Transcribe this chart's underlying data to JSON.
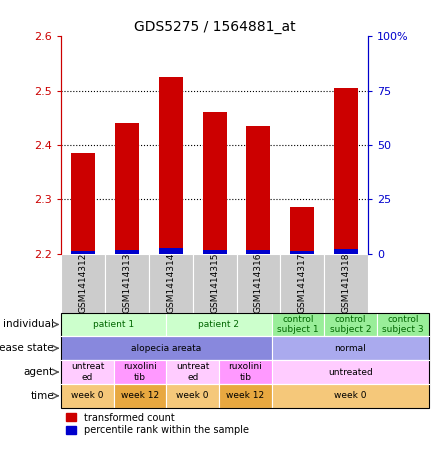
{
  "title": "GDS5275 / 1564881_at",
  "samples": [
    "GSM1414312",
    "GSM1414313",
    "GSM1414314",
    "GSM1414315",
    "GSM1414316",
    "GSM1414317",
    "GSM1414318"
  ],
  "red_values": [
    2.385,
    2.44,
    2.525,
    2.46,
    2.435,
    2.285,
    2.505
  ],
  "blue_values": [
    2.205,
    2.207,
    2.21,
    2.206,
    2.207,
    2.205,
    2.208
  ],
  "bar_bottom": 2.2,
  "ylim": [
    2.2,
    2.6
  ],
  "y2lim": [
    0,
    100
  ],
  "yticks": [
    2.2,
    2.3,
    2.4,
    2.5,
    2.6
  ],
  "y2ticks": [
    0,
    25,
    50,
    75,
    100
  ],
  "y2ticklabels": [
    "0",
    "25",
    "50",
    "75",
    "100%"
  ],
  "bar_color_red": "#cc0000",
  "bar_color_blue": "#0000cc",
  "dotted_lines": [
    2.3,
    2.4,
    2.5
  ],
  "individual_row": {
    "label": "individual",
    "cells": [
      {
        "text": "patient 1",
        "span": 2,
        "color": "#ccffcc",
        "text_color": "#006600"
      },
      {
        "text": "patient 2",
        "span": 2,
        "color": "#ccffcc",
        "text_color": "#006600"
      },
      {
        "text": "control\nsubject 1",
        "span": 1,
        "color": "#99ee99",
        "text_color": "#006600"
      },
      {
        "text": "control\nsubject 2",
        "span": 1,
        "color": "#99ee99",
        "text_color": "#006600"
      },
      {
        "text": "control\nsubject 3",
        "span": 1,
        "color": "#99ee99",
        "text_color": "#006600"
      }
    ]
  },
  "disease_state_row": {
    "label": "disease state",
    "cells": [
      {
        "text": "alopecia areata",
        "span": 4,
        "color": "#8888dd",
        "text_color": "#000000"
      },
      {
        "text": "normal",
        "span": 3,
        "color": "#aaaaee",
        "text_color": "#000000"
      }
    ]
  },
  "agent_row": {
    "label": "agent",
    "cells": [
      {
        "text": "untreat\ned",
        "span": 1,
        "color": "#ffccff",
        "text_color": "#000000"
      },
      {
        "text": "ruxolini\ntib",
        "span": 1,
        "color": "#ff99ff",
        "text_color": "#000000"
      },
      {
        "text": "untreat\ned",
        "span": 1,
        "color": "#ffccff",
        "text_color": "#000000"
      },
      {
        "text": "ruxolini\ntib",
        "span": 1,
        "color": "#ff99ff",
        "text_color": "#000000"
      },
      {
        "text": "untreated",
        "span": 3,
        "color": "#ffccff",
        "text_color": "#000000"
      }
    ]
  },
  "time_row": {
    "label": "time",
    "cells": [
      {
        "text": "week 0",
        "span": 1,
        "color": "#f5c87a",
        "text_color": "#000000"
      },
      {
        "text": "week 12",
        "span": 1,
        "color": "#e8a840",
        "text_color": "#000000"
      },
      {
        "text": "week 0",
        "span": 1,
        "color": "#f5c87a",
        "text_color": "#000000"
      },
      {
        "text": "week 12",
        "span": 1,
        "color": "#e8a840",
        "text_color": "#000000"
      },
      {
        "text": "week 0",
        "span": 3,
        "color": "#f5c87a",
        "text_color": "#000000"
      }
    ]
  },
  "legend_red_label": "transformed count",
  "legend_blue_label": "percentile rank within the sample",
  "background_color": "#ffffff",
  "tick_label_color_red": "#cc0000",
  "tick_label_color_blue": "#0000cc",
  "sample_box_color": "#cccccc",
  "plot_bg_color": "#ffffff"
}
